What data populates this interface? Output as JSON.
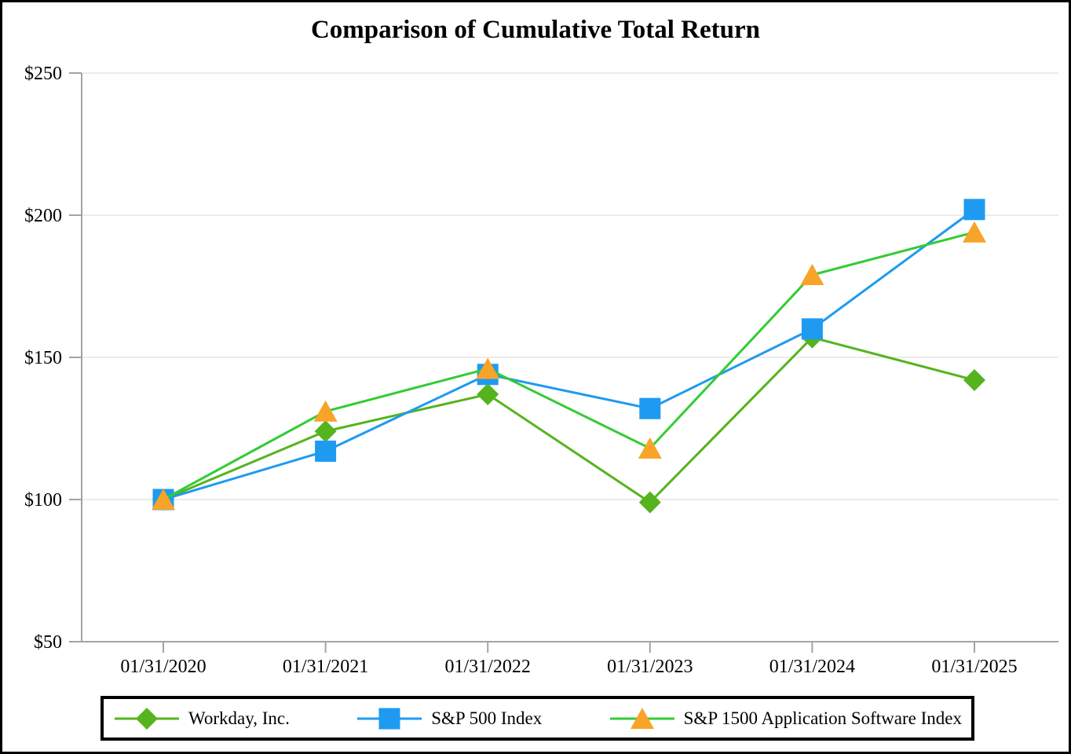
{
  "chart_data": {
    "type": "line",
    "title": "Comparison of Cumulative Total Return",
    "x_labels": [
      "01/31/2020",
      "01/31/2021",
      "01/31/2022",
      "01/31/2023",
      "01/31/2024",
      "01/31/2025"
    ],
    "y_ticks": [
      50,
      100,
      150,
      200,
      250
    ],
    "y_tick_labels": [
      "$50",
      "$100",
      "$150",
      "$200",
      "$250"
    ],
    "ylim": [
      50,
      250
    ],
    "grid": true,
    "legend_position": "bottom",
    "series": [
      {
        "name": "Workday, Inc.",
        "marker": "diamond",
        "color": "#55B41E",
        "marker_color": "#55B41E",
        "values": [
          100,
          124,
          137,
          99,
          157,
          142
        ]
      },
      {
        "name": "S&P 500 Index",
        "marker": "square",
        "color": "#1E9BF0",
        "marker_color": "#1E9BF0",
        "values": [
          100,
          117,
          144,
          132,
          160,
          202
        ]
      },
      {
        "name": "S&P 1500 Application Software Index",
        "marker": "triangle",
        "color": "#33CC33",
        "marker_color": "#F7A428",
        "values": [
          100,
          131,
          146,
          118,
          179,
          194
        ]
      }
    ]
  },
  "style_colors": {
    "axis": "#A3A3A3",
    "gridline": "#ECECEC",
    "frame": "#000000",
    "legend_border": "#000000",
    "text": "#000000"
  }
}
